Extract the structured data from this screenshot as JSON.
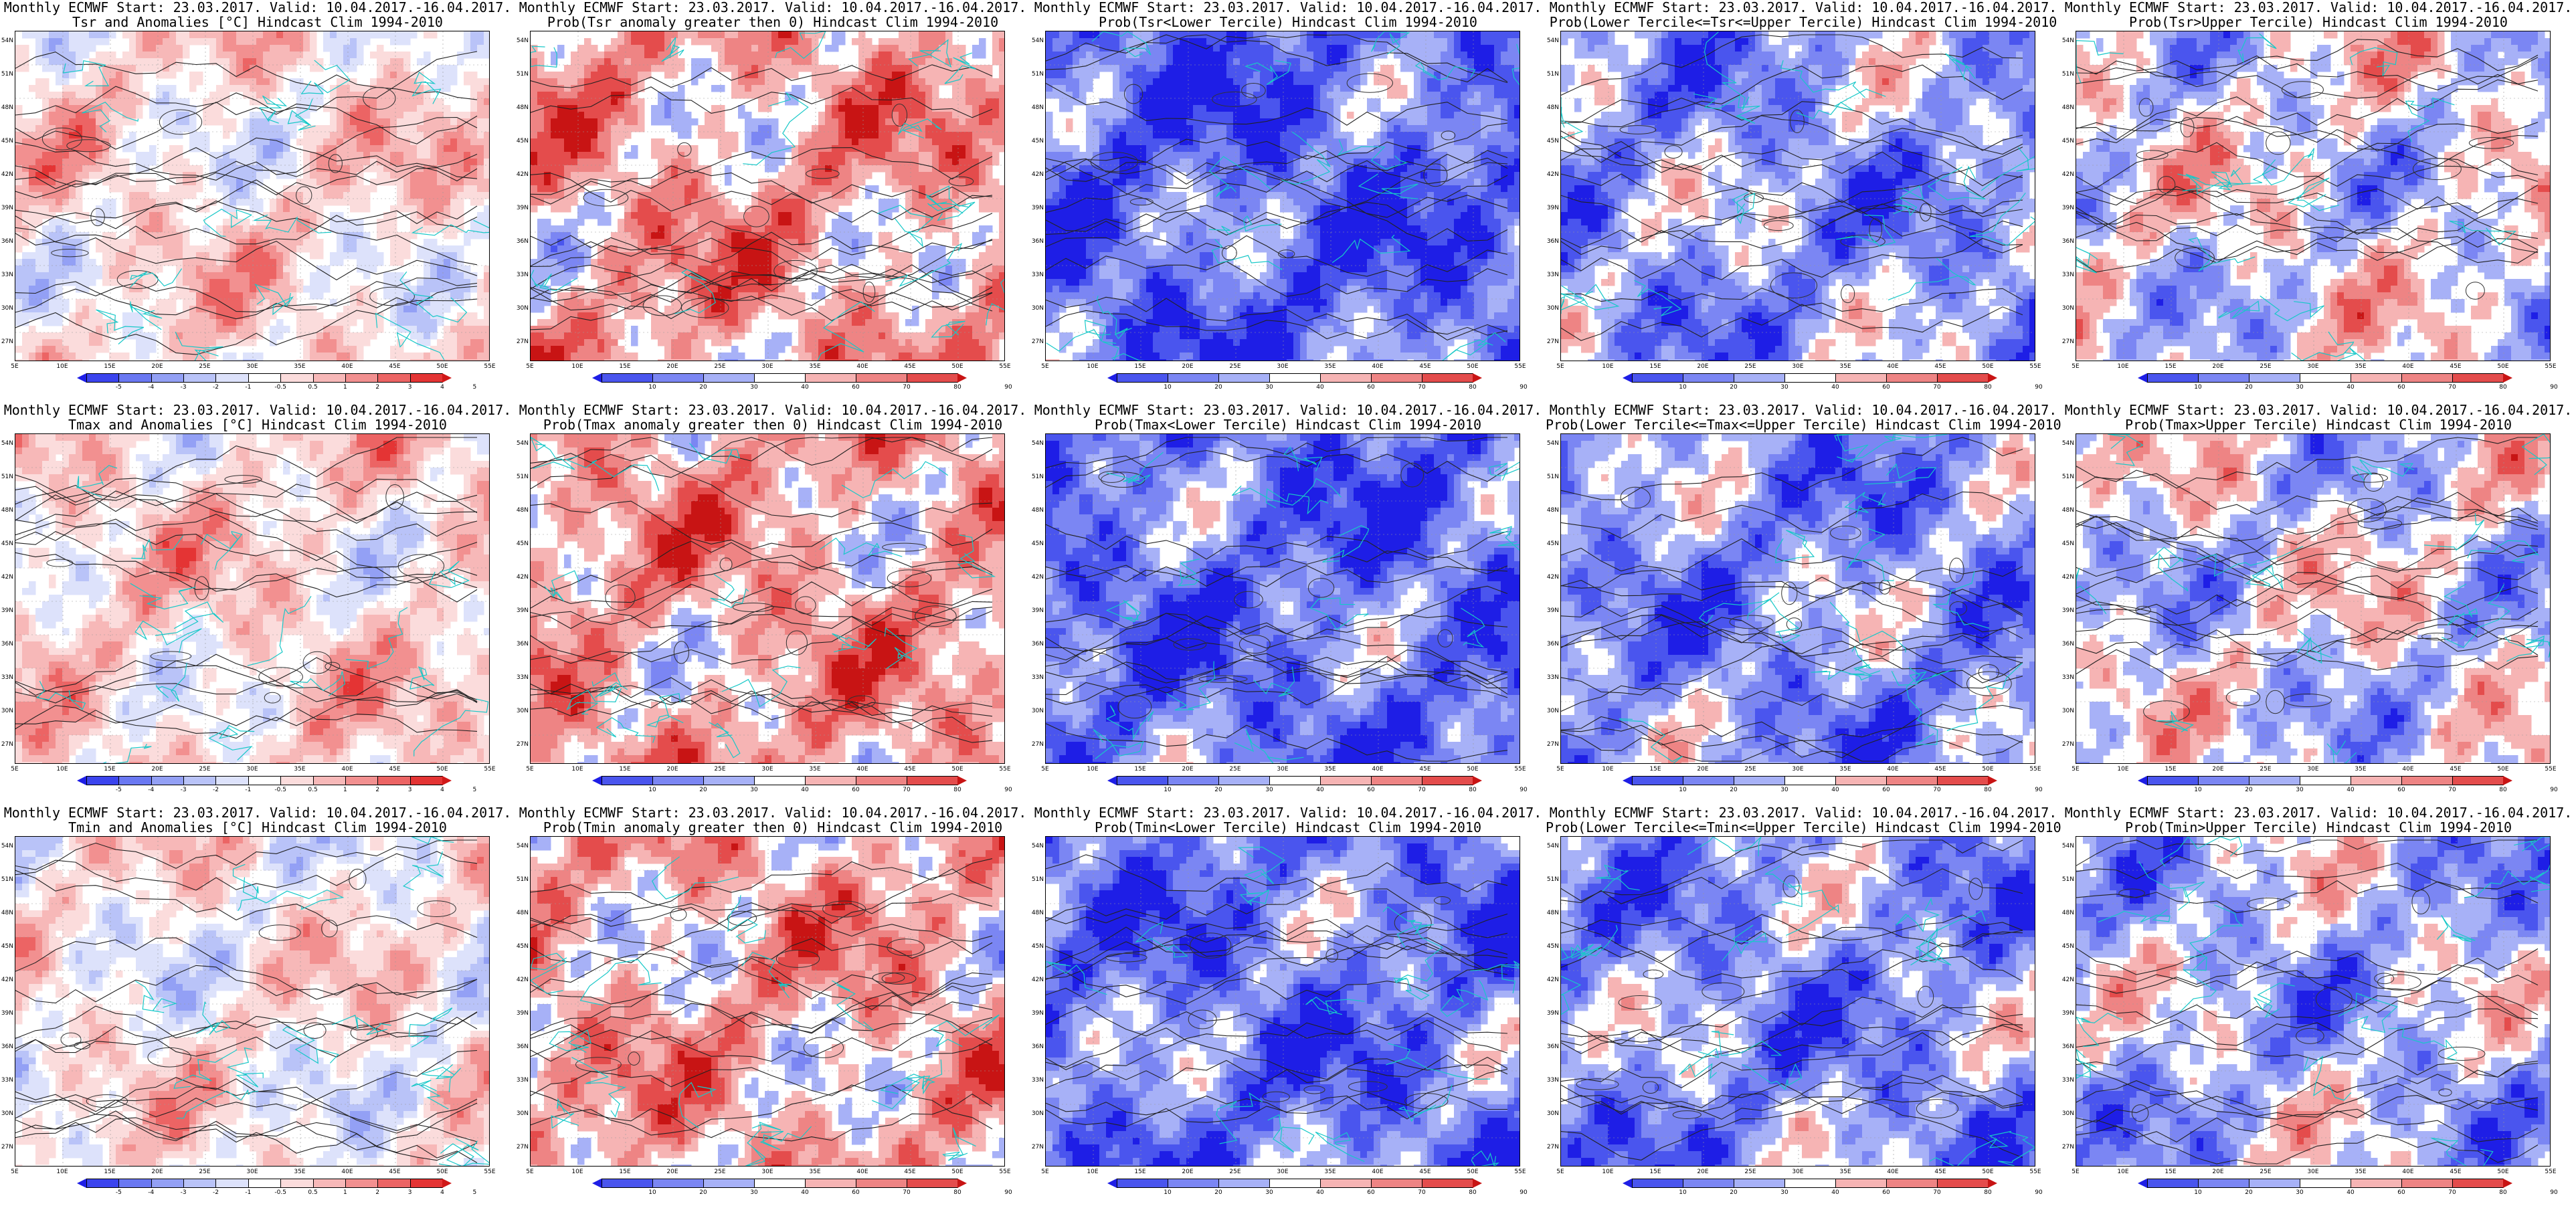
{
  "title_line1": "Monthly ECMWF Start: 23.03.2017. Valid: 10.04.2017.-16.04.2017.",
  "lat_labels": [
    "54N",
    "51N",
    "48N",
    "45N",
    "42N",
    "39N",
    "36N",
    "33N",
    "30N",
    "27N"
  ],
  "lon_labels": [
    "5E",
    "10E",
    "15E",
    "20E",
    "25E",
    "30E",
    "35E",
    "40E",
    "45E",
    "50E",
    "55E"
  ],
  "colorbars": {
    "anom": {
      "labels": [
        "-5",
        "-4",
        "-3",
        "-2",
        "-1",
        "-0.5",
        "0.5",
        "1",
        "2",
        "3",
        "4",
        "5"
      ],
      "colors": [
        "#1e1ee6",
        "#3b44ee",
        "#6a78f2",
        "#93a0f5",
        "#b9c3f8",
        "#dde2fb",
        "#ffffff",
        "#fbdcdc",
        "#f7b8b8",
        "#f29090",
        "#ec6464",
        "#e43434",
        "#d01818"
      ]
    },
    "prob": {
      "labels": [
        "10",
        "20",
        "30",
        "40",
        "60",
        "70",
        "80",
        "90"
      ],
      "colors": [
        "#1e1ee6",
        "#4a55ee",
        "#7b86f3",
        "#a7b1f7",
        "#ffffff",
        "#f6b4b4",
        "#ee8484",
        "#e44c4c",
        "#c81414"
      ]
    }
  },
  "panels": [
    {
      "id": "tsr-anom",
      "line2": "Tsr and Anomalies [°C] Hindcast Clim 1994-2010",
      "scheme": "anom",
      "bias": 0.2,
      "seed": 11
    },
    {
      "id": "tsr-pgt0",
      "line2": "Prob(Tsr anomaly greater then 0) Hindcast Clim 1994-2010",
      "scheme": "prob",
      "bias": 0.35,
      "seed": 12
    },
    {
      "id": "tsr-lower",
      "line2": "Prob(Tsr<Lower Tercile) Hindcast Clim 1994-2010",
      "scheme": "prob",
      "bias": -0.7,
      "seed": 13
    },
    {
      "id": "tsr-middle",
      "line2": "Prob(Lower Tercile<=Tsr<=Upper Tercile) Hindcast Clim 1994-2010",
      "scheme": "prob",
      "bias": -0.4,
      "seed": 14
    },
    {
      "id": "tsr-upper",
      "line2": "Prob(Tsr>Upper Tercile) Hindcast Clim 1994-2010",
      "scheme": "prob",
      "bias": -0.05,
      "seed": 15
    },
    {
      "id": "tmax-anom",
      "line2": "Tmax and Anomalies [°C] Hindcast Clim 1994-2010",
      "scheme": "anom",
      "bias": 0.25,
      "seed": 21
    },
    {
      "id": "tmax-pgt0",
      "line2": "Prob(Tmax anomaly greater then 0) Hindcast Clim 1994-2010",
      "scheme": "prob",
      "bias": 0.35,
      "seed": 22
    },
    {
      "id": "tmax-lower",
      "line2": "Prob(Tmax<Lower Tercile) Hindcast Clim 1994-2010",
      "scheme": "prob",
      "bias": -0.65,
      "seed": 23
    },
    {
      "id": "tmax-middle",
      "line2": "Prob(Lower Tercile<=Tmax<=Upper Tercile) Hindcast Clim 1994-2010",
      "scheme": "prob",
      "bias": -0.45,
      "seed": 24
    },
    {
      "id": "tmax-upper",
      "line2": "Prob(Tmax>Upper Tercile) Hindcast Clim 1994-2010",
      "scheme": "prob",
      "bias": -0.1,
      "seed": 25
    },
    {
      "id": "tmin-anom",
      "line2": "Tmin and Anomalies [°C] Hindcast Clim 1994-2010",
      "scheme": "anom",
      "bias": 0.1,
      "seed": 31
    },
    {
      "id": "tmin-pgt0",
      "line2": "Prob(Tmin anomaly greater then 0) Hindcast Clim 1994-2010",
      "scheme": "prob",
      "bias": 0.3,
      "seed": 32
    },
    {
      "id": "tmin-lower",
      "line2": "Prob(Tmin<Lower Tercile) Hindcast Clim 1994-2010",
      "scheme": "prob",
      "bias": -0.6,
      "seed": 33
    },
    {
      "id": "tmin-middle",
      "line2": "Prob(Lower Tercile<=Tmin<=Upper Tercile) Hindcast Clim 1994-2010",
      "scheme": "prob",
      "bias": -0.45,
      "seed": 34
    },
    {
      "id": "tmin-upper",
      "line2": "Prob(Tmin>Upper Tercile) Hindcast Clim 1994-2010",
      "scheme": "prob",
      "bias": -0.25,
      "seed": 35
    }
  ]
}
